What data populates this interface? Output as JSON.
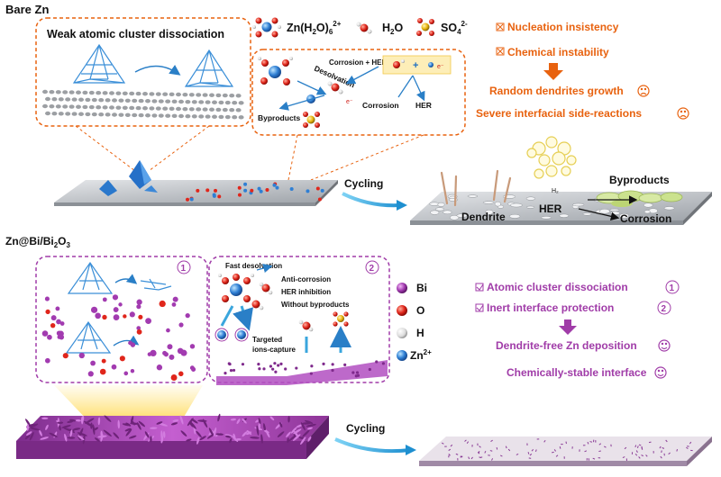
{
  "top": {
    "section_title": "Bare Zn",
    "box1_title": "Weak atomic cluster dissociation",
    "legend": {
      "zn_label": "Zn(H",
      "zn_sub2": "2",
      "zn_mid": "O)",
      "zn_sub6": "6",
      "zn_sup": "2+",
      "h2o": "H",
      "h2o_sub": "2",
      "h2o_end": "O",
      "so4": "SO",
      "so4_sub": "4",
      "so4_sup": "2-"
    },
    "box2": {
      "corrosion_her": "Corrosion + HER",
      "desolvation": "Desolvation",
      "byproducts": "Byproducts",
      "corrosion": "Corrosion",
      "her": "HER",
      "electron": "e⁻"
    },
    "issues": [
      "Nucleation insistency",
      "Chemical instability"
    ],
    "results": [
      "Random dendrites growth",
      "Severe interfacial side-reactions"
    ],
    "cycling": "Cycling",
    "after": {
      "h2": "H₂",
      "byproducts": "Byproducts",
      "dendrite": "Dendrite",
      "her": "HER",
      "corrosion": "Corrosion"
    }
  },
  "bottom": {
    "section_title_a": "Zn@Bi/Bi",
    "section_title_sub": "2",
    "section_title_b": "O",
    "section_title_sub2": "3",
    "box1_num": "1",
    "box2_num": "2",
    "box2": {
      "fast_desolvation": "Fast desolvation",
      "anti_corrosion": "Anti-corrosion",
      "her_inhibition": "HER inhibition",
      "without_byproducts": "Without byproducts",
      "targeted_a": "Targeted",
      "targeted_b": "ions-capture"
    },
    "legend": {
      "bi": "Bi",
      "o": "O",
      "h": "H",
      "zn": "Zn",
      "zn_sup": "2+"
    },
    "benefits": [
      "Atomic cluster dissociation",
      "Inert interface protection"
    ],
    "benefit_nums": [
      "1",
      "2"
    ],
    "results": [
      "Dendrite-free Zn deposition",
      "Chemically-stable interface"
    ],
    "cycling": "Cycling"
  },
  "colors": {
    "orange": "#e8620f",
    "purple": "#a03ca8",
    "blue_arrow": "#3aa6dd",
    "zn_plate": "#c7cbd0",
    "purple_plate": "#b24fc1"
  }
}
